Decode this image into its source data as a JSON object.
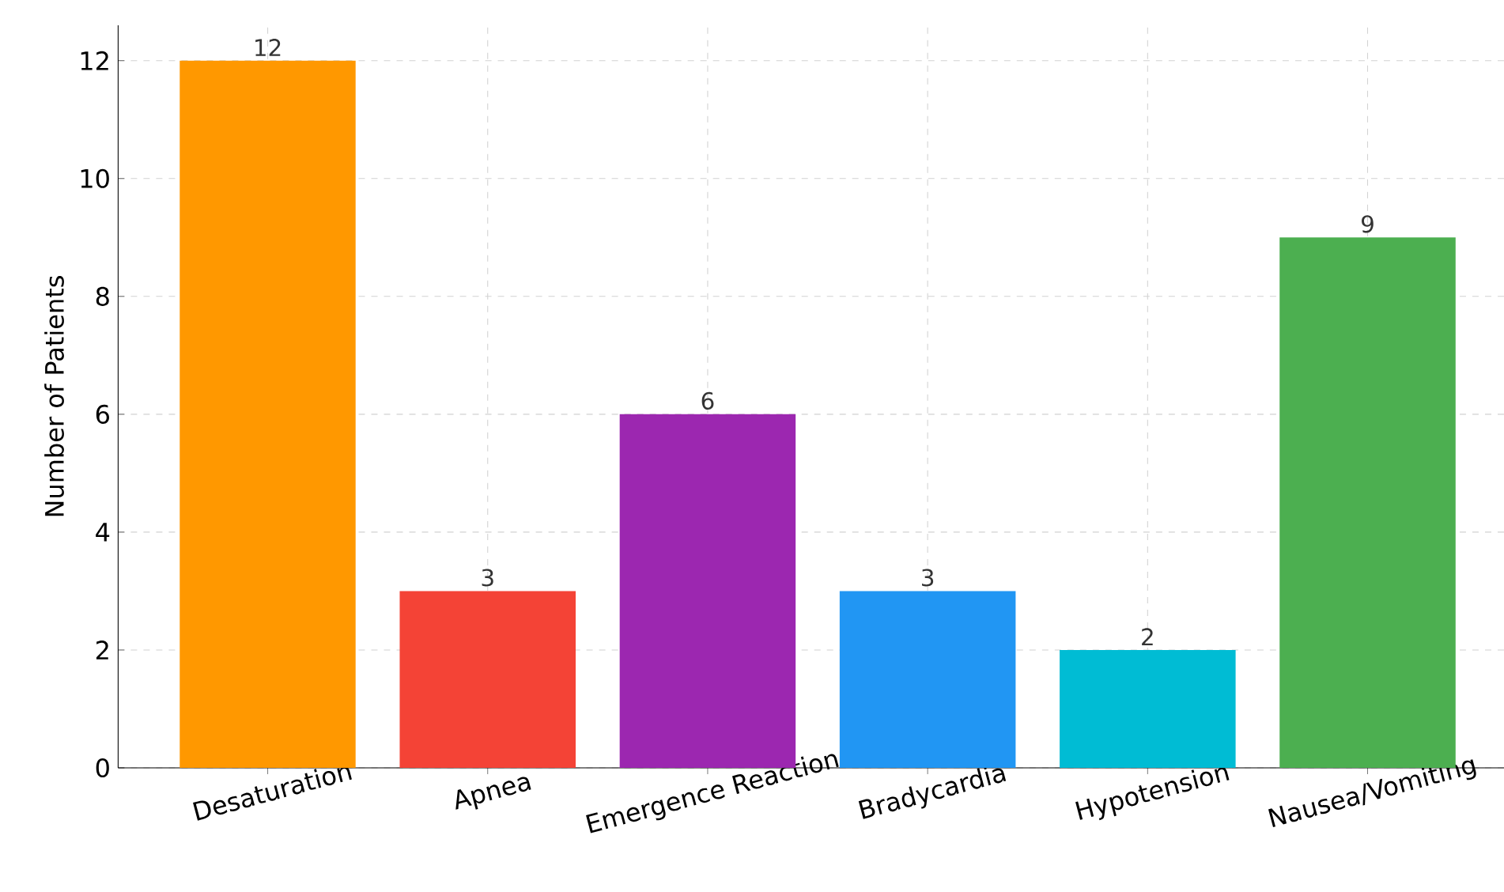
{
  "chart_data": {
    "type": "bar",
    "ylabel": "Number of Patients",
    "categories": [
      "Desaturation",
      "Apnea",
      "Emergence Reaction",
      "Bradycardia",
      "Hypotension",
      "Nausea/Vomiting"
    ],
    "values": [
      12,
      3,
      6,
      3,
      2,
      9
    ],
    "colors": [
      "#ff9800",
      "#f44336",
      "#9c27b0",
      "#2196f3",
      "#00bcd4",
      "#4caf50"
    ],
    "ylim": [
      0,
      12.6
    ],
    "yticks": [
      0,
      2,
      4,
      6,
      8,
      10,
      12
    ],
    "grid": true,
    "data_labels": true
  }
}
